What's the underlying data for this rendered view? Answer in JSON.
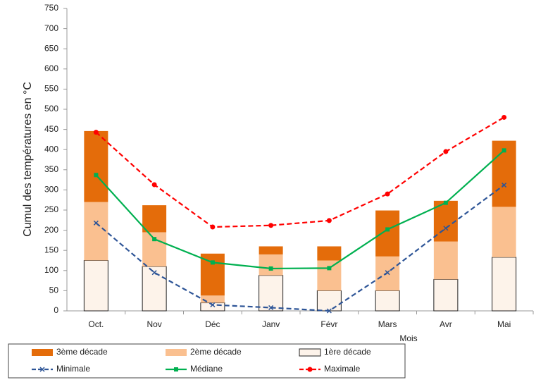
{
  "chart_data": {
    "type": "bar",
    "x_label": "Mois",
    "y_label": "Cumul des températures en °C",
    "categories": [
      "Oct.",
      "Nov",
      "Déc",
      "Janv",
      "Févr",
      "Mars",
      "Avr",
      "Mai"
    ],
    "ylim": [
      0,
      750
    ],
    "yticks": [
      0,
      50,
      100,
      150,
      200,
      250,
      300,
      350,
      400,
      450,
      500,
      550,
      600,
      650,
      700,
      750
    ],
    "series": [
      {
        "name": "3ème décade",
        "type": "bar",
        "color": "#e46c0a",
        "values": [
          176,
          67,
          104,
          20,
          35,
          114,
          101,
          164
        ]
      },
      {
        "name": "2ème décade",
        "type": "bar",
        "color": "#fac090",
        "values": [
          145,
          85,
          18,
          52,
          75,
          85,
          94,
          125
        ]
      },
      {
        "name": "1ère décade",
        "type": "bar",
        "color": "#fdf3ea",
        "values": [
          125,
          110,
          20,
          88,
          50,
          50,
          78,
          133
        ]
      },
      {
        "name": "Minimale",
        "type": "line",
        "color": "#2e5597",
        "dashed": true,
        "marker": "x",
        "values": [
          218,
          95,
          15,
          8,
          0,
          95,
          205,
          312
        ]
      },
      {
        "name": "Médiane",
        "type": "line",
        "color": "#00b050",
        "dashed": false,
        "marker": "square",
        "values": [
          337,
          178,
          120,
          105,
          106,
          202,
          268,
          398
        ]
      },
      {
        "name": "Maximale",
        "type": "line",
        "color": "#ff0000",
        "dashed": true,
        "marker": "circle",
        "values": [
          443,
          313,
          208,
          212,
          224,
          290,
          395,
          480
        ]
      }
    ]
  }
}
